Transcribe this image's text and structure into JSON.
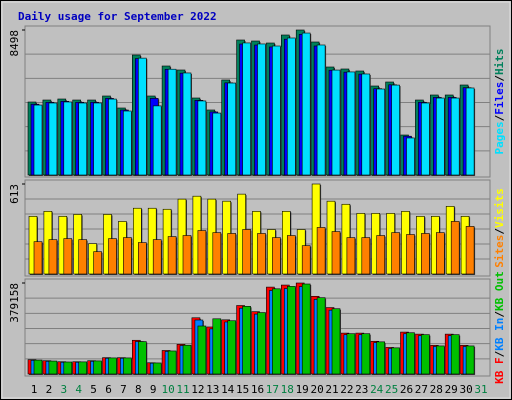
{
  "chart_data": [
    {
      "type": "bar",
      "title": "Daily usage for September 2022",
      "categories": [
        "1",
        "2",
        "3",
        "4",
        "5",
        "6",
        "7",
        "8",
        "9",
        "10",
        "11",
        "12",
        "13",
        "14",
        "15",
        "16",
        "17",
        "18",
        "19",
        "20",
        "21",
        "22",
        "23",
        "24",
        "25",
        "26",
        "27",
        "28",
        "29",
        "30",
        "31"
      ],
      "weekends": [
        false,
        false,
        true,
        true,
        false,
        false,
        false,
        false,
        false,
        true,
        true,
        false,
        false,
        false,
        false,
        false,
        true,
        true,
        false,
        false,
        false,
        false,
        false,
        true,
        true,
        false,
        false,
        false,
        false,
        false,
        true
      ],
      "label_color": "#000000",
      "weekend_color": "#008040",
      "ylim": [
        0,
        8498
      ],
      "yticks": [
        8498
      ],
      "grid": true,
      "legend_reverse": true,
      "legend_separator": "/",
      "series": [
        {
          "name": "Hits",
          "color": "#00805c",
          "values": [
            4278,
            4395,
            4454,
            4395,
            4395,
            4630,
            3927,
            7033,
            4630,
            6388,
            6154,
            4513,
            3810,
            5568,
            7912,
            7853,
            7736,
            8205,
            8498,
            7795,
            6330,
            6213,
            6095,
            5216,
            5450,
            2344,
            4395,
            4689,
            4689,
            5275,
            null
          ]
        },
        {
          "name": "Files",
          "color": "#0000ff",
          "values": [
            4150,
            4263,
            4320,
            4263,
            4263,
            4491,
            3809,
            6822,
            4491,
            6196,
            5969,
            4378,
            3696,
            5401,
            7675,
            7617,
            7504,
            7959,
            8243,
            7561,
            6140,
            6027,
            5912,
            5060,
            5287,
            2274,
            4263,
            4548,
            4548,
            5117,
            null
          ]
        },
        {
          "name": "Pages",
          "color": "#00e0ff",
          "values": [
            4100,
            4220,
            4280,
            4220,
            4220,
            4450,
            3750,
            6850,
            4050,
            6200,
            5980,
            4340,
            3630,
            5390,
            7740,
            7680,
            7560,
            8030,
            8320,
            7620,
            6150,
            6040,
            5920,
            5040,
            5270,
            2170,
            4220,
            4510,
            4510,
            5100,
            null
          ]
        }
      ]
    },
    {
      "type": "bar",
      "categories": [
        "1",
        "2",
        "3",
        "4",
        "5",
        "6",
        "7",
        "8",
        "9",
        "10",
        "11",
        "12",
        "13",
        "14",
        "15",
        "16",
        "17",
        "18",
        "19",
        "20",
        "21",
        "22",
        "23",
        "24",
        "25",
        "26",
        "27",
        "28",
        "29",
        "30",
        "31"
      ],
      "ylim": [
        0,
        613
      ],
      "yticks": [
        613
      ],
      "grid": true,
      "legend_reverse": true,
      "legend_separator": "/",
      "series": [
        {
          "name": "Visits",
          "color": "#ffff00",
          "values": [
            393,
            427,
            393,
            406,
            207,
            406,
            358,
            448,
            448,
            441,
            510,
            530,
            510,
            496,
            544,
            427,
            303,
            427,
            303,
            613,
            496,
            475,
            413,
            413,
            413,
            427,
            393,
            393,
            461,
            393,
            null
          ]
        },
        {
          "name": "Sites",
          "color": "#ff8000",
          "values": [
            220,
            234,
            241,
            234,
            152,
            241,
            248,
            214,
            234,
            255,
            262,
            296,
            282,
            276,
            303,
            276,
            248,
            262,
            193,
            317,
            289,
            248,
            248,
            262,
            282,
            269,
            276,
            282,
            358,
            324,
            null
          ]
        }
      ]
    },
    {
      "type": "bar",
      "categories": [
        "1",
        "2",
        "3",
        "4",
        "5",
        "6",
        "7",
        "8",
        "9",
        "10",
        "11",
        "12",
        "13",
        "14",
        "15",
        "16",
        "17",
        "18",
        "19",
        "20",
        "21",
        "22",
        "23",
        "24",
        "25",
        "26",
        "27",
        "28",
        "29",
        "30",
        "31"
      ],
      "ylim": [
        0,
        379158
      ],
      "yticks": [
        379158
      ],
      "grid": true,
      "legend_reverse": false,
      "legend_separator": "/",
      "series": [
        {
          "name": "KB F",
          "color": "#ff0000",
          "values": [
            59640,
            55380,
            51120,
            51120,
            55380,
            68160,
            68160,
            140580,
            46860,
            97980,
            123540,
            234300,
            195960,
            225780,
            285420,
            259860,
            362100,
            370620,
            379158,
            323760,
            276900,
            170400,
            170400,
            136320,
            110760,
            174660,
            166140,
            119280,
            166140,
            119280,
            null
          ]
        },
        {
          "name": "KB In",
          "color": "#0080ff",
          "values": [
            57000,
            53000,
            49000,
            49000,
            53000,
            65500,
            65500,
            135000,
            45000,
            94000,
            118500,
            225000,
            188000,
            216700,
            274000,
            249500,
            347600,
            355800,
            364000,
            310800,
            265800,
            163600,
            163600,
            130900,
            106300,
            167700,
            159500,
            114500,
            159500,
            114500,
            null
          ]
        },
        {
          "name": "KB Out",
          "color": "#00c000",
          "values": [
            58000,
            54000,
            50000,
            50500,
            54500,
            67000,
            67000,
            135000,
            46000,
            96000,
            120000,
            200000,
            230000,
            222000,
            282000,
            256000,
            355000,
            365000,
            375000,
            318000,
            272000,
            168000,
            168000,
            134000,
            109000,
            172000,
            164000,
            117000,
            164000,
            117000,
            null
          ]
        }
      ]
    }
  ]
}
